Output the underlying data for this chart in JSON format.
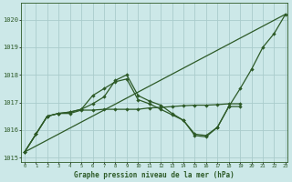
{
  "title": "Graphe pression niveau de la mer (hPa)",
  "bg_color": "#cce8e8",
  "grid_color": "#aacccc",
  "line_color": "#2d5a27",
  "xlim_min": -0.3,
  "xlim_max": 23.2,
  "ylim_min": 1014.85,
  "ylim_max": 1020.6,
  "yticks": [
    1015,
    1016,
    1017,
    1018,
    1019,
    1020
  ],
  "xticks": [
    0,
    1,
    2,
    3,
    4,
    5,
    6,
    7,
    8,
    9,
    10,
    11,
    12,
    13,
    14,
    15,
    16,
    17,
    18,
    19,
    20,
    21,
    22,
    23
  ],
  "series": [
    {
      "x": [
        0,
        23
      ],
      "y": [
        1015.2,
        1020.2
      ],
      "marker": false,
      "lw": 0.9
    },
    {
      "x": [
        0,
        1,
        2,
        3,
        4,
        5,
        6,
        7,
        8,
        9,
        10,
        11,
        12,
        13,
        14,
        15,
        16,
        17,
        18,
        19,
        20,
        21,
        22,
        23
      ],
      "y": [
        1015.2,
        1015.85,
        1016.5,
        1016.6,
        1016.65,
        1016.75,
        1016.95,
        1017.2,
        1017.8,
        1018.0,
        1017.25,
        1017.05,
        1016.9,
        1016.6,
        1016.35,
        1015.85,
        1015.8,
        1016.1,
        1016.85,
        1017.5,
        1018.2,
        1019.0,
        1019.5,
        1020.2
      ],
      "marker": true,
      "lw": 0.9
    },
    {
      "x": [
        0,
        1,
        2,
        3,
        4,
        5,
        6,
        7,
        8,
        9,
        10,
        11,
        12,
        13,
        14,
        15,
        16,
        17,
        18,
        19
      ],
      "y": [
        1015.2,
        1015.85,
        1016.5,
        1016.6,
        1016.65,
        1016.75,
        1017.25,
        1017.5,
        1017.75,
        1017.85,
        1017.1,
        1016.95,
        1016.75,
        1016.55,
        1016.35,
        1015.8,
        1015.75,
        1016.1,
        1016.85,
        1016.85
      ],
      "marker": true,
      "lw": 0.9
    },
    {
      "x": [
        0,
        1,
        2,
        3,
        4,
        5,
        6,
        7,
        8,
        9,
        10,
        11,
        12,
        13,
        14,
        15,
        16,
        17,
        18,
        19
      ],
      "y": [
        1015.2,
        1015.85,
        1016.5,
        1016.6,
        1016.6,
        1016.72,
        1016.72,
        1016.75,
        1016.75,
        1016.75,
        1016.75,
        1016.8,
        1016.82,
        1016.85,
        1016.88,
        1016.9,
        1016.9,
        1016.92,
        1016.95,
        1016.95
      ],
      "marker": true,
      "lw": 0.9
    }
  ]
}
